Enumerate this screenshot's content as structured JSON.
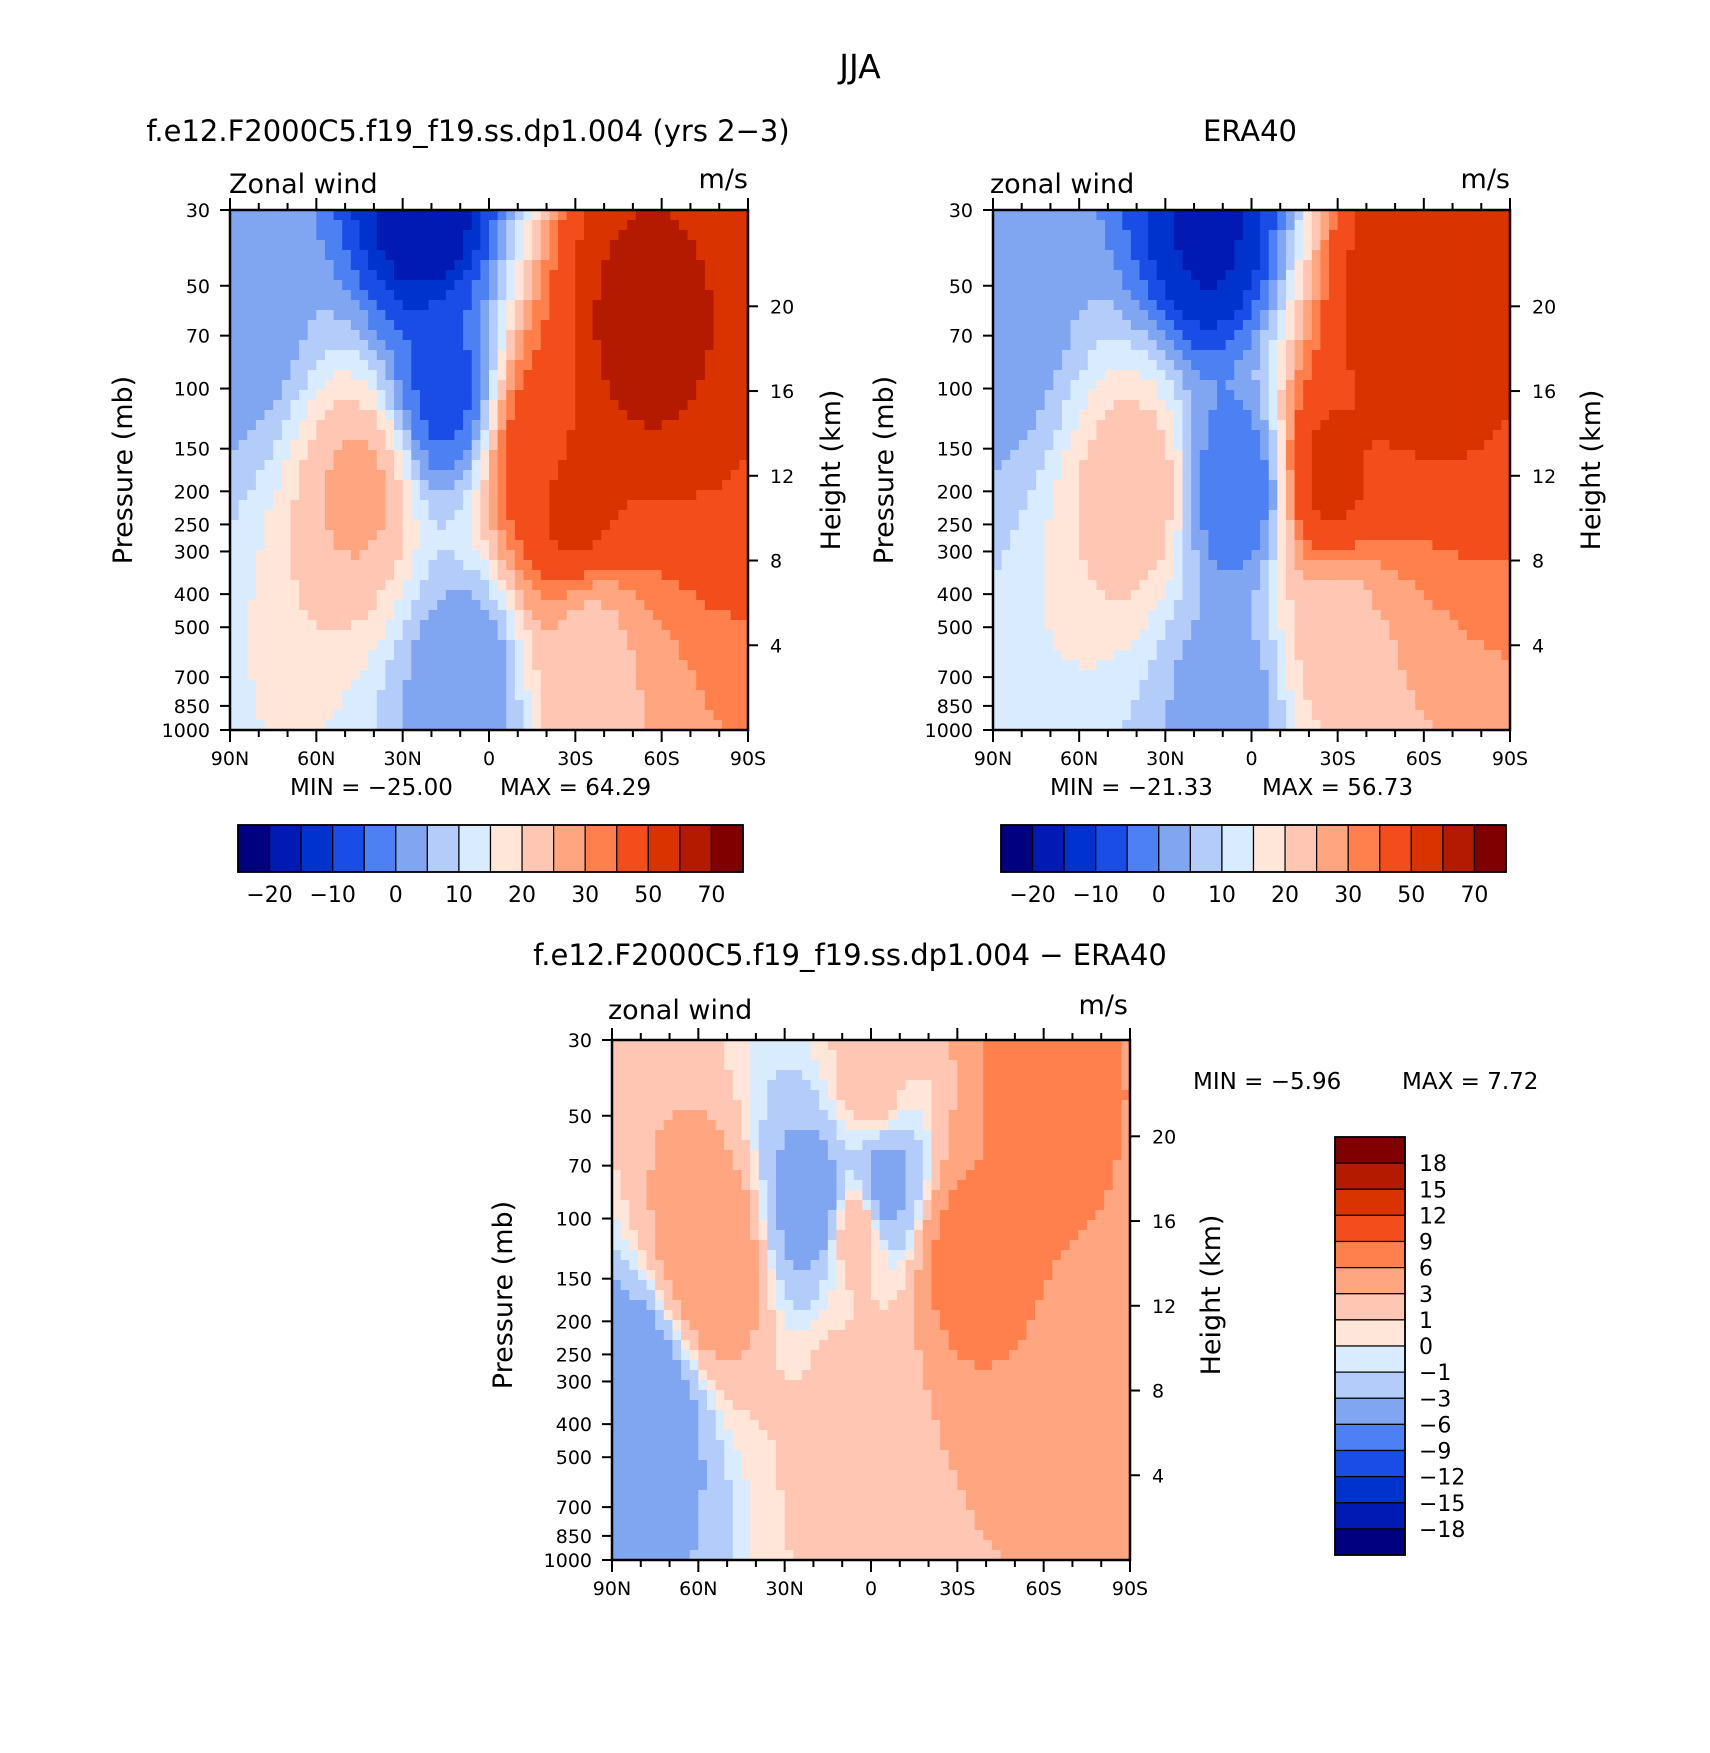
{
  "title": "JJA",
  "chart_data": [
    {
      "type": "heatmap",
      "title": "f.e12.F2000C5.f19_f19.ss.dp1.004 (yrs 2−3)",
      "left_label": "Zonal wind",
      "right_label": "m/s",
      "xlabel": "",
      "ylabel": "Pressure (mb)",
      "y2label": "Height (km)",
      "x_ticks": [
        "90N",
        "60N",
        "30N",
        "0",
        "30S",
        "60S",
        "90S"
      ],
      "y_ticks": [
        30,
        50,
        70,
        100,
        150,
        200,
        250,
        300,
        400,
        500,
        700,
        850,
        1000
      ],
      "y2_ticks": [
        4,
        8,
        12,
        16,
        20
      ],
      "ylim": [
        1000,
        30
      ],
      "xlim": [
        90,
        -90
      ],
      "min_text": "MIN = −25.00",
      "max_text": "MAX = 64.29",
      "min": -25.0,
      "max": 64.29,
      "colorbar_labels": [
        "−20",
        "−10",
        "0",
        "10",
        "20",
        "30",
        "50",
        "70"
      ],
      "features": [
        {
          "lat": -52,
          "p": 70,
          "value": 55
        },
        {
          "lat": -30,
          "p": 200,
          "value": 45
        },
        {
          "lat": -18,
          "p": 150,
          "value": 35
        },
        {
          "lat": -35,
          "p": 600,
          "value": 18
        },
        {
          "lat": 45,
          "p": 200,
          "value": 21
        },
        {
          "lat": 22,
          "p": 30,
          "value": -25
        },
        {
          "lat": 15,
          "p": 100,
          "value": -12
        },
        {
          "lat": 8,
          "p": 700,
          "value": -5
        },
        {
          "lat": 85,
          "p": 60,
          "value": -3
        }
      ]
    },
    {
      "type": "heatmap",
      "title": "ERA40",
      "left_label": "zonal wind",
      "right_label": "m/s",
      "xlabel": "",
      "ylabel": "Pressure (mb)",
      "y2label": "Height (km)",
      "x_ticks": [
        "90N",
        "60N",
        "30N",
        "0",
        "30S",
        "60S",
        "90S"
      ],
      "y_ticks": [
        30,
        50,
        70,
        100,
        150,
        200,
        250,
        300,
        400,
        500,
        700,
        850,
        1000
      ],
      "y2_ticks": [
        4,
        8,
        12,
        16,
        20
      ],
      "ylim": [
        1000,
        30
      ],
      "xlim": [
        90,
        -90
      ],
      "min_text": "MIN = −21.33",
      "max_text": "MAX = 56.73",
      "min": -21.33,
      "max": 56.73,
      "colorbar_labels": [
        "−20",
        "−10",
        "0",
        "10",
        "20",
        "30",
        "50",
        "70"
      ],
      "features": [
        {
          "lat": -55,
          "p": 60,
          "value": 50
        },
        {
          "lat": -28,
          "p": 180,
          "value": 42
        },
        {
          "lat": -30,
          "p": 500,
          "value": 18
        },
        {
          "lat": 40,
          "p": 200,
          "value": 19
        },
        {
          "lat": 15,
          "p": 35,
          "value": -21
        },
        {
          "lat": 5,
          "p": 200,
          "value": -10
        },
        {
          "lat": 8,
          "p": 800,
          "value": -3
        },
        {
          "lat": 85,
          "p": 60,
          "value": -3
        }
      ]
    },
    {
      "type": "heatmap",
      "title": "f.e12.F2000C5.f19_f19.ss.dp1.004 − ERA40",
      "left_label": "zonal wind",
      "right_label": "m/s",
      "xlabel": "",
      "ylabel": "Pressure (mb)",
      "y2label": "Height (km)",
      "x_ticks": [
        "90N",
        "60N",
        "30N",
        "0",
        "30S",
        "60S",
        "90S"
      ],
      "y_ticks": [
        30,
        50,
        70,
        100,
        150,
        200,
        250,
        300,
        400,
        500,
        700,
        850,
        1000
      ],
      "y2_ticks": [
        4,
        8,
        12,
        16,
        20
      ],
      "ylim": [
        1000,
        30
      ],
      "xlim": [
        90,
        -90
      ],
      "min_text": "MIN =  −5.96",
      "max_text": "MAX =  7.72",
      "min": -5.96,
      "max": 7.72,
      "colorbar_labels": [
        "18",
        "15",
        "12",
        "9",
        "6",
        "3",
        "1",
        "0",
        "−1",
        "−3",
        "−6",
        "−9",
        "−12",
        "−15",
        "−18"
      ],
      "features": [
        {
          "lat": 55,
          "p": 130,
          "value": 6
        },
        {
          "lat": -32,
          "p": 130,
          "value": 7.7
        },
        {
          "lat": -55,
          "p": 45,
          "value": 7
        },
        {
          "lat": 80,
          "p": 350,
          "value": -5.9
        },
        {
          "lat": 20,
          "p": 90,
          "value": -5
        },
        {
          "lat": -5,
          "p": 80,
          "value": -4
        },
        {
          "lat": 5,
          "p": 110,
          "value": 2
        },
        {
          "lat": 5,
          "p": 350,
          "value": 2
        },
        {
          "lat": 0,
          "p": 40,
          "value": 2
        }
      ]
    }
  ],
  "colors": {
    "panel_scale": [
      "#000080",
      "#001ab3",
      "#0033cc",
      "#1a4de6",
      "#4d80f2",
      "#80a6f2",
      "#b3ccfa",
      "#d9ebff",
      "#ffe6d9",
      "#ffc7b3",
      "#ffa680",
      "#ff7f4d",
      "#f24d1a",
      "#d93300",
      "#b31a00",
      "#800000"
    ],
    "diff_scale_top_to_bottom": [
      "#800000",
      "#b31a00",
      "#d93300",
      "#f24d1a",
      "#ff7f4d",
      "#ffa680",
      "#ffc7b3",
      "#ffe6d9",
      "#d9ebff",
      "#b3ccfa",
      "#80a6f2",
      "#4d80f2",
      "#1a4de6",
      "#0033cc",
      "#001ab3",
      "#000080"
    ]
  }
}
